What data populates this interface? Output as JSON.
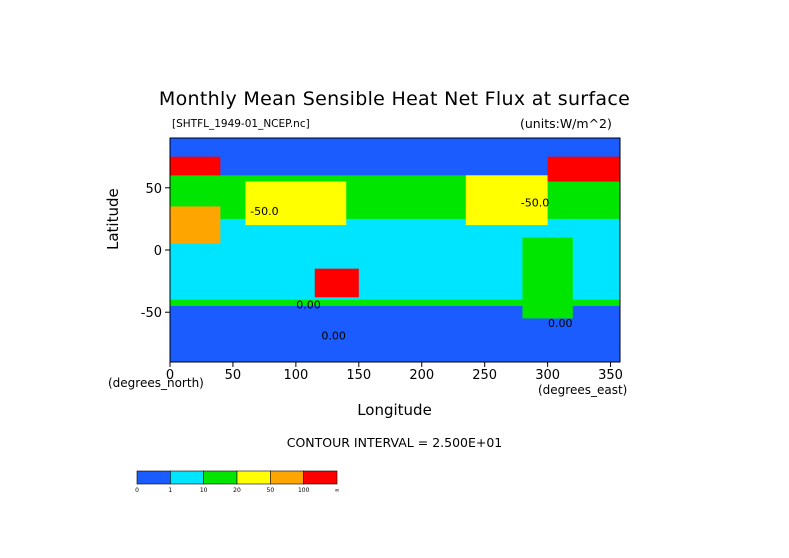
{
  "chart_data": {
    "type": "heatmap",
    "title": "Monthly Mean Sensible Heat Net Flux at surface",
    "subtitle_left": "[SHTFL_1949-01_NCEP.nc]",
    "subtitle_right": "(units:W/m^2)",
    "xlabel": "Longitude",
    "ylabel": "Latitude",
    "x_units": "(degrees_east)",
    "y_units": "(degrees_north)",
    "xlim": [
      0,
      357.5
    ],
    "ylim": [
      -90,
      90
    ],
    "x_ticks": [
      0,
      50,
      100,
      150,
      200,
      250,
      300,
      350
    ],
    "y_ticks": [
      50,
      0,
      -50
    ],
    "contour_interval": "CONTOUR INTERVAL = 2.500E+01",
    "contour_labels": [
      {
        "text": "-50.0",
        "lon": 75,
        "lat": 28
      },
      {
        "text": "0.00",
        "lon": 110,
        "lat": -47
      },
      {
        "text": "0.00",
        "lon": 130,
        "lat": -72
      },
      {
        "text": "0.00",
        "lon": 310,
        "lat": -62
      },
      {
        "text": "-50.0",
        "lon": 290,
        "lat": 35
      }
    ],
    "colorbar": {
      "colors": [
        "#1a5cff",
        "#00e5ff",
        "#00e600",
        "#ffff00",
        "#ffa500",
        "#ff0000"
      ],
      "tick_labels": [
        "0",
        "1",
        "10",
        "20",
        "50",
        "100",
        "∞"
      ]
    },
    "regions": [
      {
        "name": "southern-ocean",
        "color": "#1a5cff",
        "lat": [
          -90,
          -45
        ],
        "lon": [
          0,
          357.5
        ]
      },
      {
        "name": "arctic",
        "color": "#1a5cff",
        "lat": [
          60,
          90
        ],
        "lon": [
          0,
          357.5
        ]
      },
      {
        "name": "tropical-band",
        "color": "#00e5ff",
        "lat": [
          -40,
          25
        ],
        "lon": [
          0,
          357.5
        ]
      },
      {
        "name": "australia",
        "color": "#ff0000",
        "lat": [
          -38,
          -15
        ],
        "lon": [
          115,
          150
        ]
      },
      {
        "name": "north-africa",
        "color": "#ffa500",
        "lat": [
          5,
          35
        ],
        "lon": [
          0,
          40
        ]
      },
      {
        "name": "north-america",
        "color": "#ffff00",
        "lat": [
          20,
          60
        ],
        "lon": [
          235,
          300
        ]
      },
      {
        "name": "south-america",
        "color": "#00e600",
        "lat": [
          -55,
          10
        ],
        "lon": [
          280,
          320
        ]
      },
      {
        "name": "asia",
        "color": "#ffff00",
        "lat": [
          20,
          55
        ],
        "lon": [
          60,
          140
        ]
      },
      {
        "name": "siberia-edge",
        "color": "#ff0000",
        "lat": [
          60,
          75
        ],
        "lon": [
          0,
          40
        ]
      },
      {
        "name": "alaska-canada",
        "color": "#ff0000",
        "lat": [
          55,
          75
        ],
        "lon": [
          300,
          357.5
        ]
      }
    ]
  }
}
